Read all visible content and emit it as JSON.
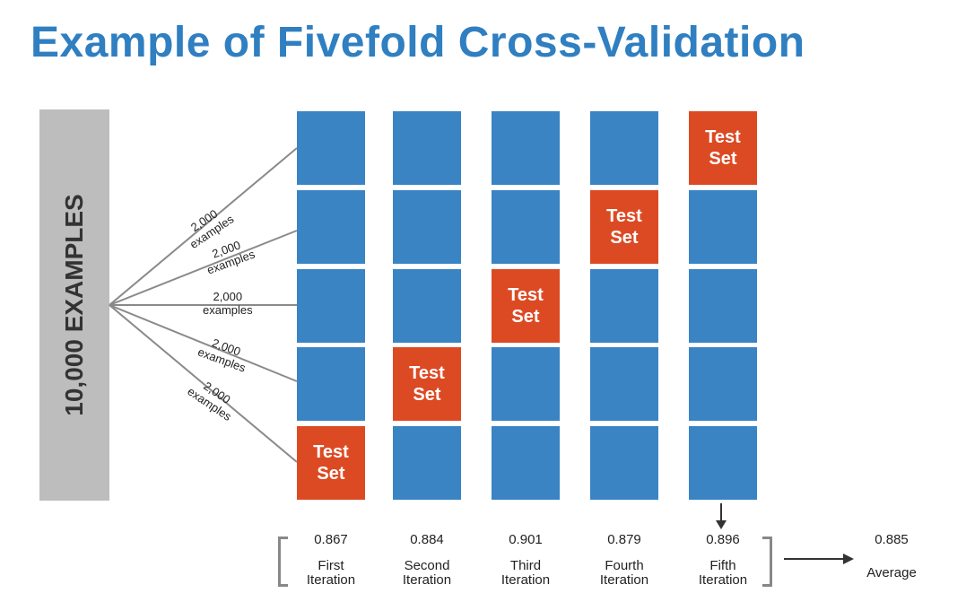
{
  "title": "Example of Fivefold Cross-Validation",
  "examples_label": "10,000 EXAMPLES",
  "fold_label": "2,000\nexamples",
  "test_label": "Test\nSet",
  "iterations": [
    {
      "score": "0.867",
      "label": "First\nIteration",
      "test_fold": 5
    },
    {
      "score": "0.884",
      "label": "Second\nIteration",
      "test_fold": 4
    },
    {
      "score": "0.901",
      "label": "Third\nIteration",
      "test_fold": 3
    },
    {
      "score": "0.879",
      "label": "Fourth\nIteration",
      "test_fold": 2
    },
    {
      "score": "0.896",
      "label": "Fifth\nIteration",
      "test_fold": 1
    }
  ],
  "average": {
    "value": "0.885",
    "label": "Average"
  },
  "colors": {
    "title": "#2f7fc1",
    "fold": "#3a84c4",
    "test": "#dc4a24",
    "bar": "#bdbdbd"
  }
}
